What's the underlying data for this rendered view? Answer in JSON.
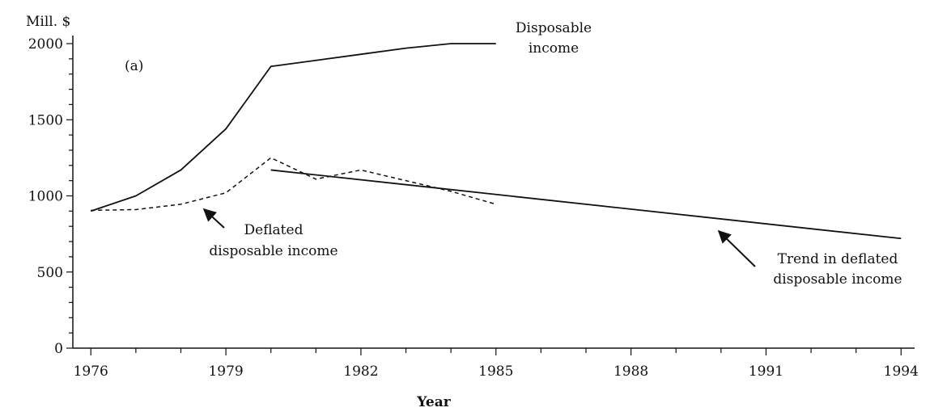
{
  "chart_data": {
    "type": "line",
    "panel_label": "(a)",
    "y_unit_label": "Mill. $",
    "xlabel": "Year",
    "x_ticks": [
      1976,
      1979,
      1982,
      1985,
      1988,
      1991,
      1994
    ],
    "y_ticks": [
      0,
      500,
      1000,
      1500,
      2000
    ],
    "xlim": [
      1975.6,
      1994.3
    ],
    "ylim": [
      0,
      2000
    ],
    "grid": false,
    "series": [
      {
        "name": "Disposable income",
        "style": "solid",
        "x": [
          1976,
          1977,
          1978,
          1979,
          1980,
          1981,
          1982,
          1983,
          1984,
          1985
        ],
        "y": [
          900,
          1000,
          1170,
          1440,
          1850,
          1890,
          1930,
          1970,
          2000,
          2000
        ]
      },
      {
        "name": "Deflated disposable income",
        "style": "dashed",
        "x": [
          1976,
          1977,
          1978,
          1979,
          1980,
          1981,
          1982,
          1983,
          1984,
          1985
        ],
        "y": [
          905,
          910,
          945,
          1020,
          1250,
          1110,
          1170,
          1100,
          1030,
          945
        ]
      },
      {
        "name": "Trend in deflated disposable income",
        "style": "solid",
        "x": [
          1980,
          1994
        ],
        "y": [
          1170,
          720
        ]
      }
    ],
    "annotations": [
      {
        "id": "disposable",
        "lines": [
          "Disposable",
          "income"
        ]
      },
      {
        "id": "deflated",
        "lines": [
          "Deflated",
          "disposable income"
        ]
      },
      {
        "id": "trend",
        "lines": [
          "Trend in deflated",
          "disposable income"
        ]
      }
    ]
  }
}
